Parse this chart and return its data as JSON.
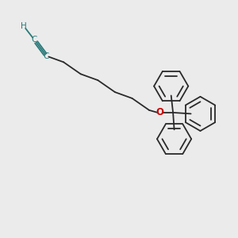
{
  "background_color": "#ebebeb",
  "line_color": "#2a2a2a",
  "alkyne_color": "#2a7a7a",
  "oxygen_color": "#cc0000",
  "lw": 1.3,
  "figsize": [
    3.0,
    3.0
  ],
  "dpi": 100,
  "H_label": "H",
  "C1_label": "C",
  "C2_label": "C",
  "O_label": "O",
  "fontsize_hc": 7.5,
  "fontsize_o": 8.5
}
